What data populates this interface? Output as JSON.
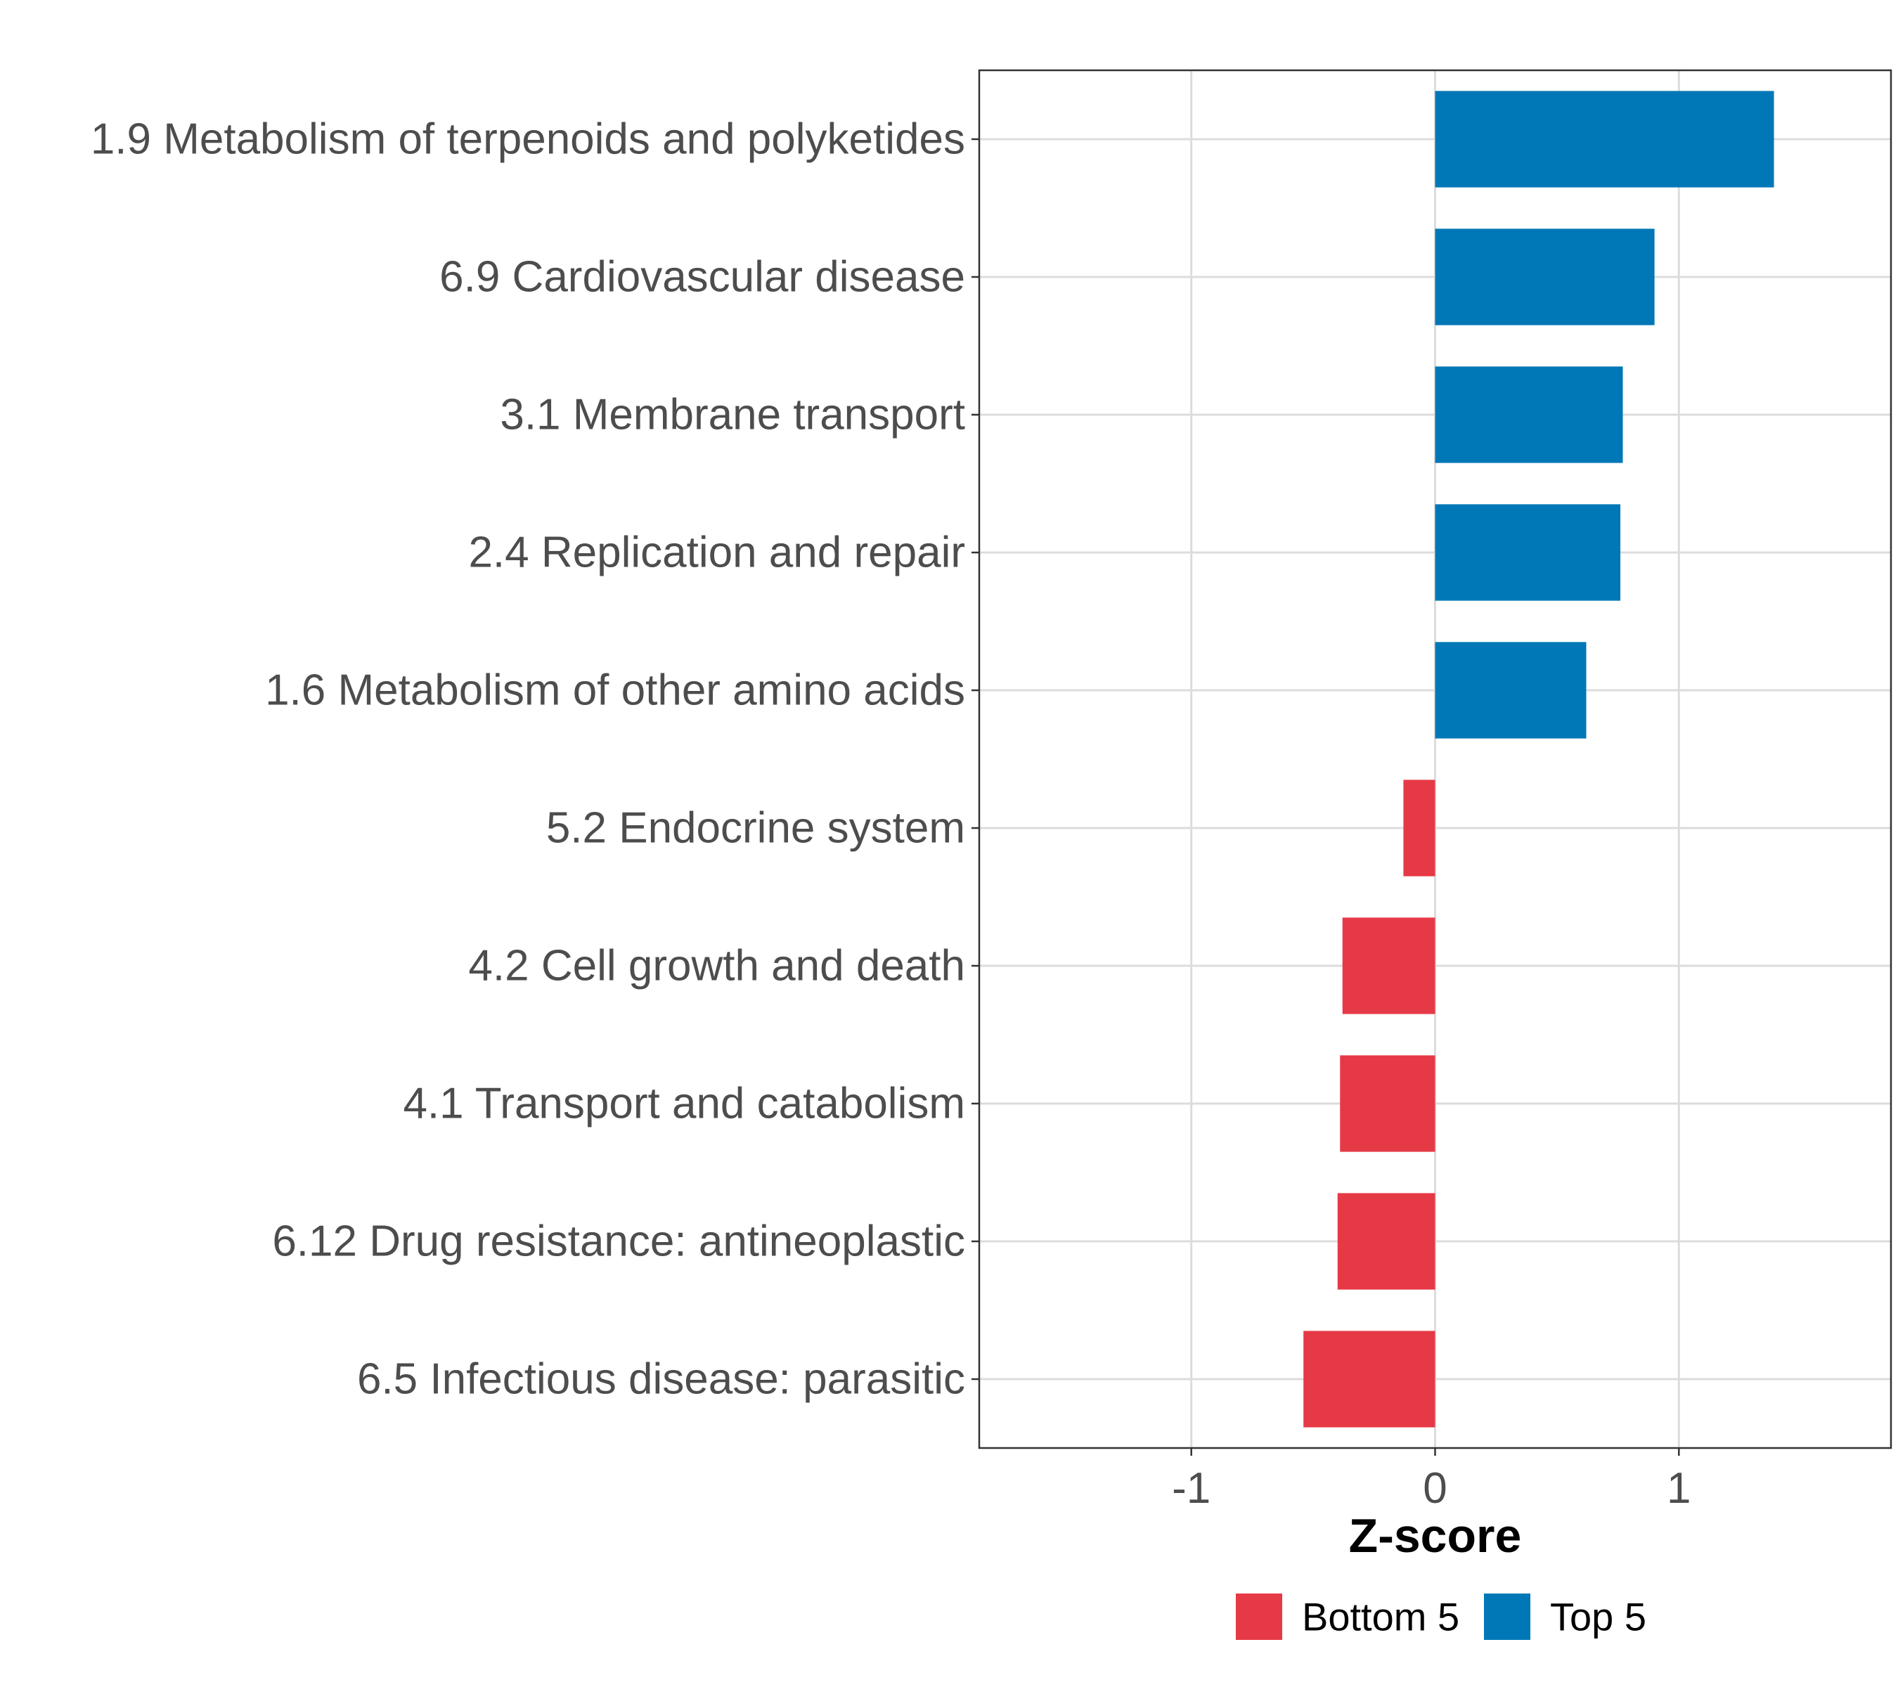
{
  "chart_data": {
    "type": "bar",
    "orientation": "horizontal",
    "title": "",
    "xlabel": "Z-score",
    "ylabel": "",
    "xlim": [
      -1.87,
      1.87
    ],
    "xticks": [
      -1,
      0,
      1
    ],
    "xtick_labels": [
      "-1",
      "0",
      "1"
    ],
    "grid": true,
    "legend_position": "bottom",
    "categories": [
      "1.9 Metabolism of terpenoids and polyketides",
      "6.9 Cardiovascular disease",
      "3.1 Membrane transport",
      "2.4 Replication and repair",
      "1.6 Metabolism of other amino acids",
      "5.2 Endocrine system",
      "4.2 Cell growth and death",
      "4.1 Transport and catabolism",
      "6.12 Drug resistance: antineoplastic",
      "6.5 Infectious disease: parasitic"
    ],
    "values": [
      1.39,
      0.9,
      0.77,
      0.76,
      0.62,
      -0.13,
      -0.38,
      -0.39,
      -0.4,
      -0.54
    ],
    "groups": [
      "Top 5",
      "Top 5",
      "Top 5",
      "Top 5",
      "Top 5",
      "Bottom 5",
      "Bottom 5",
      "Bottom 5",
      "Bottom 5",
      "Bottom 5"
    ],
    "legend": [
      {
        "name": "Bottom 5",
        "color": "#e63946"
      },
      {
        "name": "Top 5",
        "color": "#0077b6"
      }
    ]
  }
}
